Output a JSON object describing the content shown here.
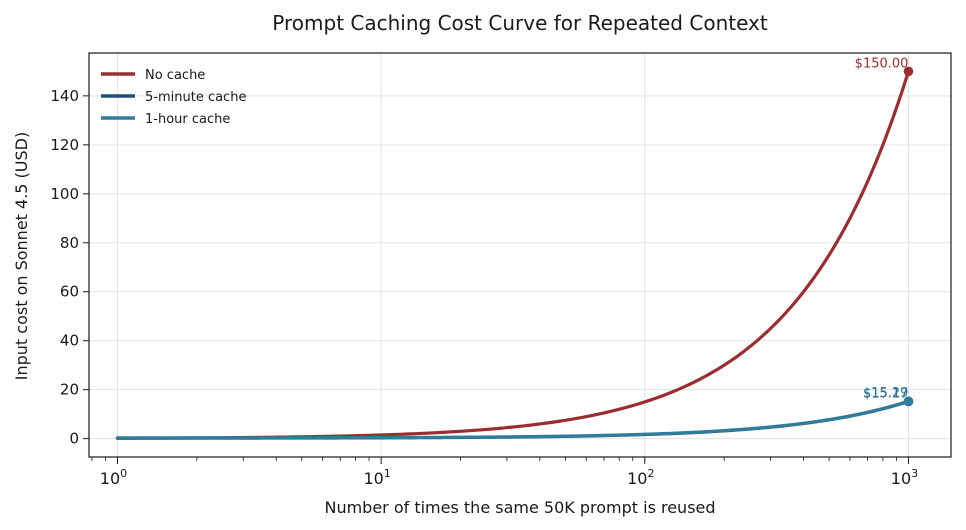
{
  "chart_data": {
    "type": "line",
    "title": "Prompt Caching Cost Curve for Repeated Context",
    "xlabel": "Number of times the same 50K prompt is reused",
    "ylabel": "Input cost on Sonnet 4.5 (USD)",
    "x_scale": "log",
    "xlim": [
      0.78,
      1450
    ],
    "ylim": [
      -7.5,
      157.5
    ],
    "x_ticks": [
      {
        "value": 1,
        "base": "10",
        "exp": "0"
      },
      {
        "value": 10,
        "base": "10",
        "exp": "1"
      },
      {
        "value": 100,
        "base": "10",
        "exp": "2"
      },
      {
        "value": 1000,
        "base": "10",
        "exp": "3"
      }
    ],
    "y_ticks": [
      0,
      20,
      40,
      60,
      80,
      100,
      120,
      140
    ],
    "grid": true,
    "legend_position": "top-left",
    "x": [
      1,
      2,
      5,
      10,
      20,
      50,
      100,
      200,
      500,
      1000
    ],
    "series": [
      {
        "name": "No cache",
        "color": "#9b2d30",
        "values": [
          0.15,
          0.3,
          0.75,
          1.5,
          3.0,
          7.5,
          15.0,
          30.0,
          75.0,
          150.0
        ],
        "end_label": "$150.00"
      },
      {
        "name": "5-minute cache",
        "color": "#1f4e79",
        "values": [
          0.1875,
          0.2025,
          0.2475,
          0.3225,
          0.4725,
          0.9225,
          1.6725,
          3.1725,
          7.6725,
          15.1725
        ],
        "end_label": "$15.17"
      },
      {
        "name": "1-hour cache",
        "color": "#2e7d9a",
        "values": [
          0.3,
          0.315,
          0.36,
          0.435,
          0.585,
          1.035,
          1.785,
          3.285,
          7.785,
          15.285
        ],
        "end_label": "$15.29"
      }
    ]
  }
}
